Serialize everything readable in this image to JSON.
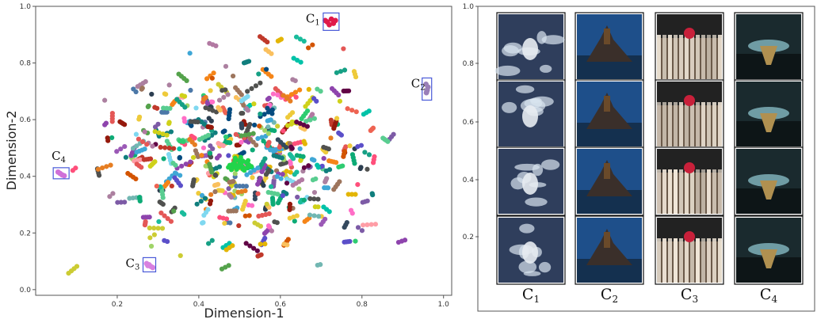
{
  "chart_data": [
    {
      "type": "scatter",
      "title": "",
      "xlabel": "Dimension-1",
      "ylabel": "Dimension-2",
      "xlim": [
        0.0,
        1.02
      ],
      "ylim": [
        -0.02,
        1.0
      ],
      "xticks": [
        "0.2",
        "0.4",
        "0.6",
        "0.8",
        "1.0"
      ],
      "yticks": [
        "0.0",
        "0.2",
        "0.4",
        "0.6",
        "0.8",
        "1.0"
      ],
      "grid": false,
      "legend": "none",
      "highlighted_clusters": [
        {
          "label": "C1",
          "display_label": "C",
          "subscript": "1",
          "color": "#e0194a",
          "points": [
            [
              0.715,
              0.945
            ],
            [
              0.725,
              0.955
            ],
            [
              0.73,
              0.94
            ],
            [
              0.72,
              0.935
            ],
            [
              0.735,
              0.95
            ],
            [
              0.71,
              0.95
            ]
          ]
        },
        {
          "label": "C2",
          "display_label": "C",
          "subscript": "2",
          "color": "#9a7fb8",
          "points": [
            [
              0.958,
              0.695
            ],
            [
              0.96,
              0.705
            ],
            [
              0.962,
              0.715
            ],
            [
              0.957,
              0.725
            ],
            [
              0.959,
              0.7
            ]
          ]
        },
        {
          "label": "C3",
          "display_label": "C",
          "subscript": "3",
          "color": "#d880e0",
          "points": [
            [
              0.272,
              0.092
            ],
            [
              0.278,
              0.088
            ],
            [
              0.282,
              0.082
            ],
            [
              0.287,
              0.078
            ],
            [
              0.275,
              0.085
            ]
          ]
        },
        {
          "label": "C4",
          "display_label": "C",
          "subscript": "4",
          "color": "#d070d8",
          "points": [
            [
              0.055,
              0.415
            ],
            [
              0.06,
              0.41
            ],
            [
              0.065,
              0.405
            ],
            [
              0.07,
              0.402
            ]
          ]
        }
      ],
      "background_series": {
        "description_note": "",
        "palette": [
          "#e45756",
          "#4c78a8",
          "#54a24b",
          "#eeca3b",
          "#b279a2",
          "#ff9da6",
          "#9d755d",
          "#72b7b2",
          "#f58518",
          "#7fd8f0",
          "#c0392b",
          "#2ecc71",
          "#1abc9c",
          "#9b59b6",
          "#34495e",
          "#e67e22",
          "#16a085",
          "#d35400",
          "#8e44ad",
          "#2c3e50",
          "#a0d468",
          "#ff6ec7",
          "#00c2a8",
          "#5b4fc9",
          "#cccc33",
          "#ff4f7b",
          "#3fa7d6",
          "#59cd90",
          "#fac05e",
          "#ee6352",
          "#7d5ba6",
          "#50514f",
          "#cfd11a",
          "#e3b505",
          "#95190c",
          "#107e7d",
          "#610345",
          "#044b7f",
          "#ac80a0",
          "#0dab76"
        ]
      }
    }
  ],
  "panel": {
    "y_ticks": [
      "1.0",
      "0.8",
      "0.6",
      "0.4",
      "0.2"
    ],
    "columns": [
      {
        "name": "C1",
        "label": "C",
        "subscript": "1"
      },
      {
        "name": "C2",
        "label": "C",
        "subscript": "2"
      },
      {
        "name": "C3",
        "label": "C",
        "subscript": "3"
      },
      {
        "name": "C4",
        "label": "C",
        "subscript": "4"
      }
    ],
    "thumbnail_styles": {
      "C1": {
        "bg": "#2f3e5c",
        "accent": "#d8e4f0",
        "center": "#e8ecf2"
      },
      "C2": {
        "bg": "#1e4f8a",
        "accent": "#6a4a2a",
        "center": "#3a2f2a"
      },
      "C3": {
        "bg": "#6b5a4a",
        "accent": "#f0e6d8",
        "center": "#c8203a"
      },
      "C4": {
        "bg": "#1a2a2e",
        "accent": "#7fb0b8",
        "center": "#b09050"
      }
    }
  }
}
